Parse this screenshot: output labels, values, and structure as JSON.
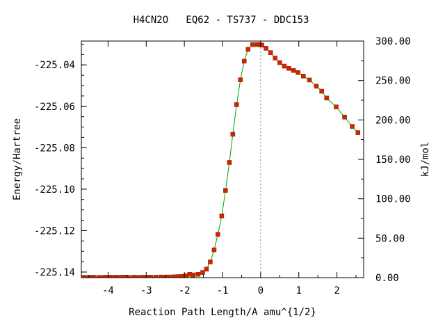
{
  "chart_data": {
    "type": "scatter",
    "title": "H4CN2O   EQ62 - TS737 - DDC153",
    "xlabel": "Reaction Path Length/A amu^{1/2}",
    "ylabel": "Energy/Hartree",
    "y2label": "kJ/mol",
    "xlim": [
      -4.7,
      2.7
    ],
    "ylim": [
      -225.1427,
      -225.0285
    ],
    "y2lim": [
      0,
      300
    ],
    "x_ticks": [
      "-4",
      "-3",
      "-2",
      "-1",
      "0",
      "1",
      "2"
    ],
    "y_ticks": [
      "-225.04",
      "-225.06",
      "-225.08",
      "-225.10",
      "-225.12",
      "-225.14"
    ],
    "y2_ticks": [
      "0.00",
      "50.00",
      "100.00",
      "150.00",
      "200.00",
      "250.00",
      "300.00"
    ],
    "ts_marker_x": 0.0,
    "grid": false,
    "series": [
      {
        "color": "#00a000",
        "marker_color": "#d62000",
        "x": [
          -4.68,
          -4.58,
          -4.47,
          -4.38,
          -4.25,
          -4.15,
          -4.05,
          -3.95,
          -3.85,
          -3.78,
          -3.66,
          -3.55,
          -3.45,
          -3.32,
          -3.2,
          -3.08,
          -2.96,
          -2.88,
          -2.75,
          -2.62,
          -2.55,
          -2.45,
          -2.35,
          -2.25,
          -2.15,
          -2.05,
          -1.95,
          -1.86,
          -1.77,
          -1.64,
          -1.52,
          -1.42,
          -1.32,
          -1.22,
          -1.12,
          -1.02,
          -0.92,
          -0.82,
          -0.73,
          -0.63,
          -0.53,
          -0.43,
          -0.33,
          -0.21,
          -0.09,
          -0.03,
          0.03,
          0.14,
          0.26,
          0.38,
          0.5,
          0.62,
          0.74,
          0.86,
          0.98,
          1.12,
          1.28,
          1.46,
          1.6,
          1.73,
          1.98,
          2.2,
          2.4,
          2.55
        ],
        "y": [
          -225.1426,
          -225.1426,
          -225.1426,
          -225.1425,
          -225.1426,
          -225.1426,
          -225.1425,
          -225.1425,
          -225.1426,
          -225.1425,
          -225.1425,
          -225.1425,
          -225.1426,
          -225.1425,
          -225.1426,
          -225.1425,
          -225.1425,
          -225.1425,
          -225.1425,
          -225.1424,
          -225.1425,
          -225.1424,
          -225.1424,
          -225.1423,
          -225.1422,
          -225.1421,
          -225.1418,
          -225.1411,
          -225.1414,
          -225.1411,
          -225.1402,
          -225.1386,
          -225.1351,
          -225.1293,
          -225.1218,
          -225.1129,
          -225.1006,
          -225.0871,
          -225.0735,
          -225.0592,
          -225.0472,
          -225.0382,
          -225.0325,
          -225.0302,
          -225.0302,
          -225.0302,
          -225.0305,
          -225.032,
          -225.0341,
          -225.0367,
          -225.0389,
          -225.0406,
          -225.0417,
          -225.0427,
          -225.0437,
          -225.0454,
          -225.0473,
          -225.0503,
          -225.0527,
          -225.056,
          -225.0603,
          -225.0652,
          -225.0697,
          -225.0727
        ]
      }
    ]
  }
}
